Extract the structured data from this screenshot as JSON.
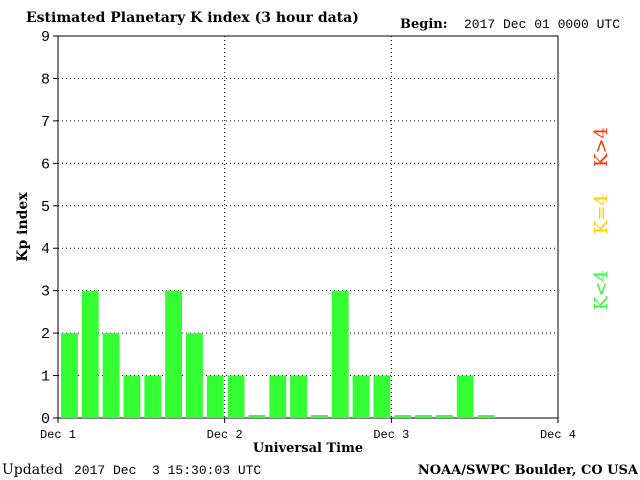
{
  "header": {
    "title": "Estimated Planetary K index (3 hour data)",
    "begin_label": "Begin:",
    "begin_value": "2017 Dec 01 0000 UTC"
  },
  "footer": {
    "updated_label": "Updated",
    "updated_value": "2017 Dec  3 15:30:03 UTC",
    "credit": "NOAA/SWPC Boulder, CO USA"
  },
  "legend": {
    "items": [
      {
        "label": "K<4",
        "color": "#33ff33"
      },
      {
        "label": "K=4",
        "color": "#ffcc00"
      },
      {
        "label": "K>4",
        "color": "#ff3300"
      }
    ]
  },
  "chart_data": {
    "type": "bar",
    "ylabel": "Kp index",
    "xlabel": "Universal Time",
    "ylim": [
      0,
      9
    ],
    "yticks": [
      "0",
      "1",
      "2",
      "3",
      "4",
      "5",
      "6",
      "7",
      "8",
      "9"
    ],
    "xticks": [
      "Dec 1",
      "Dec 2",
      "Dec 3",
      "Dec 4"
    ],
    "interval_hours": 3,
    "grid": true,
    "bar_color": "#33ff33",
    "values": [
      2,
      3,
      2,
      1,
      1,
      3,
      2,
      1,
      1,
      0.07,
      1,
      1,
      0.07,
      3,
      1,
      1,
      0.07,
      0.07,
      0.07,
      1,
      0.07
    ]
  }
}
